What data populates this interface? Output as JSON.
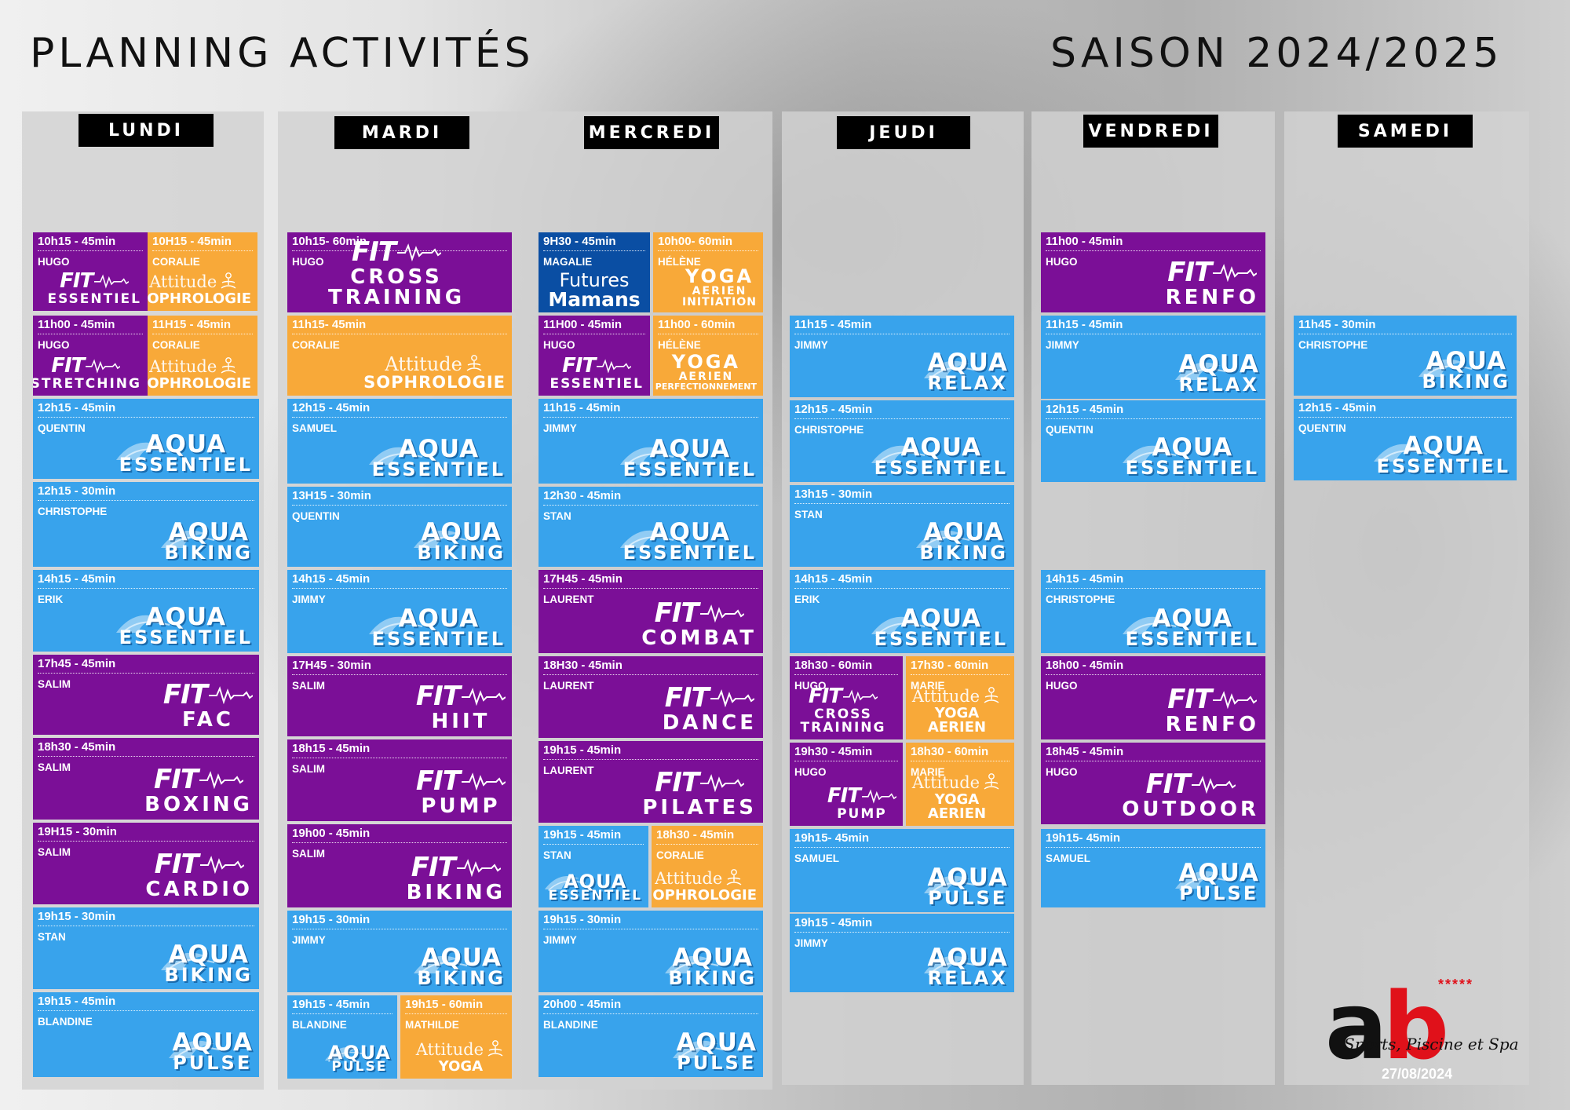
{
  "header": {
    "title": "PLANNING ACTIVITÉS",
    "season": "SAISON 2024/2025"
  },
  "days": [
    "LUNDI",
    "MARDI",
    "MERCREDI",
    "JEUDI",
    "VENDREDI",
    "SAMEDI"
  ],
  "colors": {
    "fit": "#7b0f97",
    "attitude": "#f8a939",
    "aqua": "#38a3ec",
    "futures": "#0a4ea3",
    "brand_red": "#e0111a"
  },
  "slots": {
    "lundi": [
      {
        "time": "10h15 - 45min",
        "coach": "HUGO",
        "logo": "FIT",
        "name": "ESSENTIEL"
      },
      {
        "time": "10H15 - 45min",
        "coach": "CORALIE",
        "logo": "Attitude",
        "name": "SOPHROLOGIE"
      },
      {
        "time": "11h00 - 45min",
        "coach": "HUGO",
        "logo": "FIT",
        "name": "STRETCHING"
      },
      {
        "time": "11H15 - 45min",
        "coach": "CORALIE",
        "logo": "Attitude",
        "name": "SOPHROLOGIE"
      },
      {
        "time": "12h15 - 45min",
        "coach": "QUENTIN",
        "logo": "AQUA",
        "name": "ESSENTIEL"
      },
      {
        "time": "12h15 - 30min",
        "coach": "CHRISTOPHE",
        "logo": "AQUA",
        "name": "BIKING"
      },
      {
        "time": "14h15 - 45min",
        "coach": "ERIK",
        "logo": "AQUA",
        "name": "ESSENTIEL"
      },
      {
        "time": "17h45 - 45min",
        "coach": "SALIM",
        "logo": "FIT",
        "name": "FAC"
      },
      {
        "time": "18h30 - 45min",
        "coach": "SALIM",
        "logo": "FIT",
        "name": "BOXING"
      },
      {
        "time": "19H15 - 30min",
        "coach": "SALIM",
        "logo": "FIT",
        "name": "CARDIO"
      },
      {
        "time": "19h15 - 30min",
        "coach": "STAN",
        "logo": "AQUA",
        "name": "BIKING"
      },
      {
        "time": "19h15 - 45min",
        "coach": "BLANDINE",
        "logo": "AQUA",
        "name": "PULSE"
      }
    ],
    "mardi": [
      {
        "time": "10h15- 60min",
        "coach": "HUGO",
        "logo": "FIT",
        "name": "CROSS TRAINING"
      },
      {
        "time": "11h15- 45min",
        "coach": "CORALIE",
        "logo": "Attitude",
        "name": "SOPHROLOGIE"
      },
      {
        "time": "12h15 - 45min",
        "coach": "SAMUEL",
        "logo": "AQUA",
        "name": "ESSENTIEL"
      },
      {
        "time": "13H15 - 30min",
        "coach": "QUENTIN",
        "logo": "AQUA",
        "name": "BIKING"
      },
      {
        "time": "14h15 - 45min",
        "coach": "JIMMY",
        "logo": "AQUA",
        "name": "ESSENTIEL"
      },
      {
        "time": "17H45 - 30min",
        "coach": "SALIM",
        "logo": "FIT",
        "name": "HIIT"
      },
      {
        "time": "18h15 - 45min",
        "coach": "SALIM",
        "logo": "FIT",
        "name": "PUMP"
      },
      {
        "time": "19h00 - 45min",
        "coach": "SALIM",
        "logo": "FIT",
        "name": "BIKING"
      },
      {
        "time": "19h15 - 30min",
        "coach": "JIMMY",
        "logo": "AQUA",
        "name": "BIKING"
      },
      {
        "time": "19h15 - 45min",
        "coach": "BLANDINE",
        "logo": "AQUA",
        "name": "PULSE"
      },
      {
        "time": "19h15 - 60min",
        "coach": "MATHILDE",
        "logo": "Attitude",
        "name": "YOGA"
      }
    ],
    "mercredi": [
      {
        "time": "9H30 - 45min",
        "coach": "MAGALIE",
        "logo": "Futures",
        "name": "Mamans"
      },
      {
        "time": "10h00- 60min",
        "coach": "HÉLÈNE",
        "logo": "YOGA",
        "sub": "AERIEN",
        "name": "INITIATION"
      },
      {
        "time": "11H00 - 45min",
        "coach": "HUGO",
        "logo": "FIT",
        "name": "ESSENTIEL"
      },
      {
        "time": "11h00 - 60min",
        "coach": "HÉLÈNE",
        "logo": "YOGA",
        "sub": "AERIEN",
        "name": "PERFECTIONNEMENT"
      },
      {
        "time": "11h15 - 45min",
        "coach": "JIMMY",
        "logo": "AQUA",
        "name": "ESSENTIEL"
      },
      {
        "time": "12h30 - 45min",
        "coach": "STAN",
        "logo": "AQUA",
        "name": "ESSENTIEL"
      },
      {
        "time": "17H45 - 45min",
        "coach": "LAURENT",
        "logo": "FIT",
        "name": "COMBAT"
      },
      {
        "time": "18H30 - 45min",
        "coach": "LAURENT",
        "logo": "FIT",
        "name": "DANCE"
      },
      {
        "time": "19h15 - 45min",
        "coach": "LAURENT",
        "logo": "FIT",
        "name": "PILATES"
      },
      {
        "time": "19h15 - 45min",
        "coach": "STAN",
        "logo": "AQUA",
        "name": "ESSENTIEL"
      },
      {
        "time": "18h30 - 45min",
        "coach": "CORALIE",
        "logo": "Attitude",
        "name": "SOPHROLOGIE"
      },
      {
        "time": "19h15 - 30min",
        "coach": "JIMMY",
        "logo": "AQUA",
        "name": "BIKING"
      },
      {
        "time": "20h00 - 45min",
        "coach": "BLANDINE",
        "logo": "AQUA",
        "name": "PULSE"
      }
    ],
    "jeudi": [
      {
        "time": "11h15 - 45min",
        "coach": "JIMMY",
        "logo": "AQUA",
        "name": "RELAX"
      },
      {
        "time": "12h15 - 45min",
        "coach": "CHRISTOPHE",
        "logo": "AQUA",
        "name": "ESSENTIEL"
      },
      {
        "time": "13h15 - 30min",
        "coach": "STAN",
        "logo": "AQUA",
        "name": "BIKING"
      },
      {
        "time": "14h15 - 45min",
        "coach": "ERIK",
        "logo": "AQUA",
        "name": "ESSENTIEL"
      },
      {
        "time": "18h30 - 60min",
        "coach": "HUGO",
        "logo": "FIT",
        "name": "CROSS TRAINING"
      },
      {
        "time": "17h30 - 60min",
        "coach": "MARIE",
        "logo": "Attitude",
        "name": "YOGA AERIEN"
      },
      {
        "time": "19h30 - 45min",
        "coach": "HUGO",
        "logo": "FIT",
        "name": "PUMP"
      },
      {
        "time": "18h30 - 60min",
        "coach": "MARIE",
        "logo": "Attitude",
        "name": "YOGA AERIEN"
      },
      {
        "time": "19h15- 45min",
        "coach": "SAMUEL",
        "logo": "AQUA",
        "name": "PULSE"
      },
      {
        "time": "19h15 - 45min",
        "coach": "JIMMY",
        "logo": "AQUA",
        "name": "RELAX"
      }
    ],
    "vendredi": [
      {
        "time": "11h00 - 45min",
        "coach": "HUGO",
        "logo": "FIT",
        "name": "RENFO"
      },
      {
        "time": "11h15 - 45min",
        "coach": "JIMMY",
        "logo": "AQUA",
        "name": "RELAX"
      },
      {
        "time": "12h15 - 45min",
        "coach": "QUENTIN",
        "logo": "AQUA",
        "name": "ESSENTIEL"
      },
      {
        "time": "14h15 - 45min",
        "coach": "CHRISTOPHE",
        "logo": "AQUA",
        "name": "ESSENTIEL"
      },
      {
        "time": "18h00 - 45min",
        "coach": "HUGO",
        "logo": "FIT",
        "name": "RENFO"
      },
      {
        "time": "18h45 - 45min",
        "coach": "HUGO",
        "logo": "FIT",
        "name": "OUTDOOR"
      },
      {
        "time": "19h15- 45min",
        "coach": "SAMUEL",
        "logo": "AQUA",
        "name": "PULSE"
      }
    ],
    "samedi": [
      {
        "time": "11h45 - 30min",
        "coach": "CHRISTOPHE",
        "logo": "AQUA",
        "name": "BIKING"
      },
      {
        "time": "12h15 - 45min",
        "coach": "QUENTIN",
        "logo": "AQUA",
        "name": "ESSENTIEL"
      }
    ]
  },
  "brand": {
    "letters": "ab",
    "stars": "*****",
    "tagline": "Sports, Piscine et Spa",
    "date": "27/08/2024"
  }
}
